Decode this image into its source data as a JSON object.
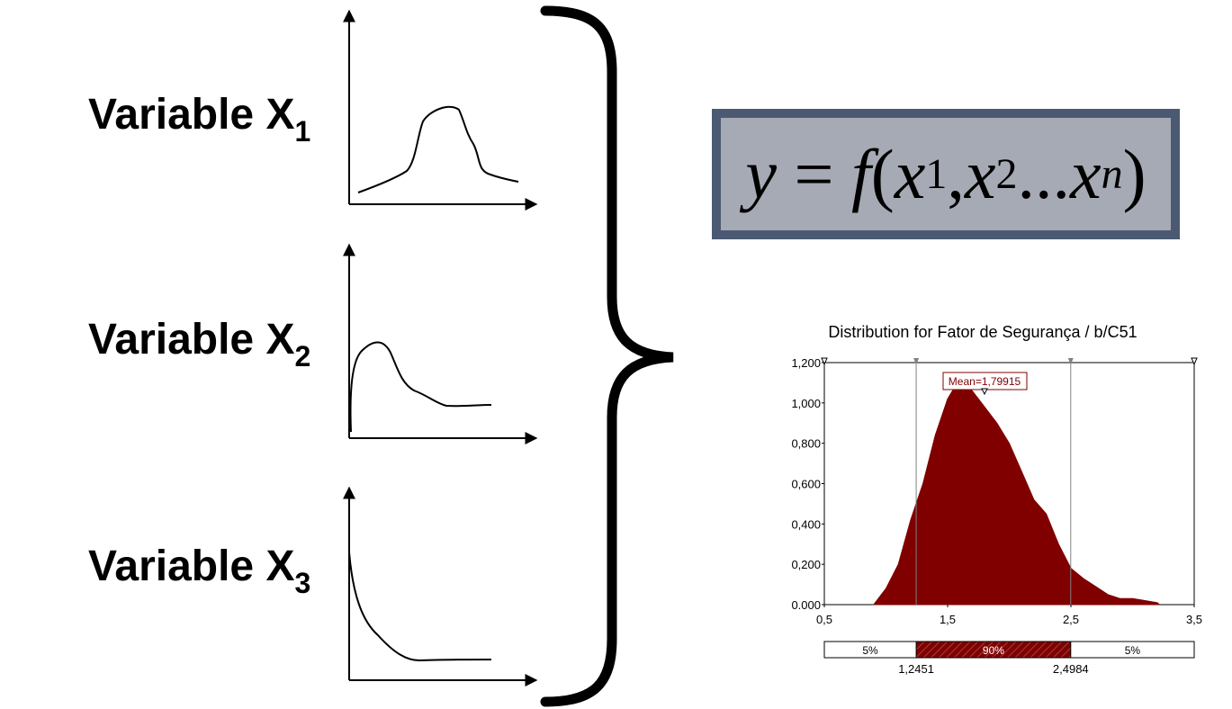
{
  "variables": [
    {
      "prefix": "Variable X",
      "subscript": "1"
    },
    {
      "prefix": "Variable X",
      "subscript": "2"
    },
    {
      "prefix": "Variable X",
      "subscript": "3"
    }
  ],
  "formula": {
    "y": "y",
    "eq": " = ",
    "f": "f",
    "open": "(",
    "x": "x",
    "sub1": "1",
    "sep": ", ",
    "sub2": "2",
    "ellipsis": "...",
    "subn": "n",
    "close": ")"
  },
  "colors": {
    "formula_border": "#4b5a72",
    "formula_fill": "#a6aab4",
    "distribution_fill": "#800000"
  },
  "chart_data": {
    "type": "area",
    "title": "Distribution for Fator de Segurança / b/C51",
    "xlim": [
      0.5,
      3.5
    ],
    "ylim": [
      0,
      1.2
    ],
    "x_ticks": [
      "0,5",
      "1,5",
      "2,5",
      "3,5"
    ],
    "y_ticks": [
      "0.000",
      "0,200",
      "0,400",
      "0,600",
      "0,800",
      "1,000",
      "1,200"
    ],
    "mean_label": "Mean=1,79915",
    "mean_value": 1.79915,
    "lower_marker": 1.2451,
    "upper_marker": 2.4984,
    "lower_label": "1,2451",
    "upper_label": "2,4984",
    "band_labels": [
      "5%",
      "90%",
      "5%"
    ],
    "x": [
      0.9,
      1.0,
      1.1,
      1.2,
      1.3,
      1.4,
      1.5,
      1.55,
      1.6,
      1.65,
      1.7,
      1.8,
      1.9,
      2.0,
      2.1,
      2.2,
      2.3,
      2.4,
      2.5,
      2.6,
      2.7,
      2.8,
      2.9,
      3.0,
      3.1,
      3.2,
      3.22
    ],
    "y": [
      0,
      0.08,
      0.2,
      0.42,
      0.6,
      0.84,
      1.02,
      1.07,
      1.1,
      1.09,
      1.06,
      0.98,
      0.9,
      0.8,
      0.66,
      0.52,
      0.45,
      0.3,
      0.18,
      0.13,
      0.09,
      0.05,
      0.03,
      0.03,
      0.02,
      0.01,
      0
    ]
  }
}
